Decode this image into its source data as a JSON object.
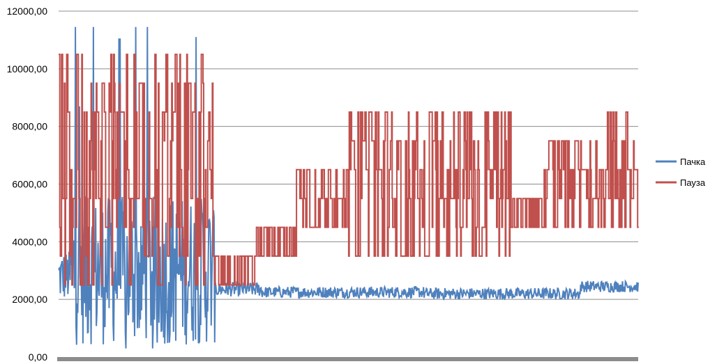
{
  "chart_data": {
    "type": "line",
    "ylim": [
      0,
      12000
    ],
    "y_ticks": [
      "0,00",
      "2000,00",
      "4000,00",
      "6000,00",
      "8000,00",
      "10000,00",
      "12000,00"
    ],
    "y_tick_values": [
      0,
      2000,
      4000,
      6000,
      8000,
      10000,
      12000
    ],
    "grid": true,
    "legend_position": "right",
    "n_points": 1000,
    "series": [
      {
        "name": "Пачка",
        "color": "#4f81bd",
        "segments": [
          {
            "from": 0,
            "to": 0.02,
            "base": 2800,
            "noise": 900,
            "spikes": [
              1200,
              3800
            ]
          },
          {
            "from": 0.02,
            "to": 0.27,
            "base": 3000,
            "noise": 2600,
            "spikes": [
              11300,
              11450,
              11450,
              11100,
              11050,
              8700,
              300,
              100,
              500,
              1300
            ]
          },
          {
            "from": 0.27,
            "to": 0.35,
            "base": 2350,
            "noise": 250
          },
          {
            "from": 0.35,
            "to": 0.63,
            "base": 2250,
            "noise": 200
          },
          {
            "from": 0.63,
            "to": 0.9,
            "base": 2200,
            "noise": 200
          },
          {
            "from": 0.9,
            "to": 1.0,
            "base": 2450,
            "noise": 200
          }
        ]
      },
      {
        "name": "Пауза",
        "color": "#c0504d",
        "segments": [
          {
            "from": 0,
            "to": 0.27,
            "levels": [
              2500,
              3500,
              4500,
              5500,
              6500,
              7500,
              8500,
              9500,
              10500
            ]
          },
          {
            "from": 0.27,
            "to": 0.34,
            "levels": [
              2500,
              3500
            ]
          },
          {
            "from": 0.34,
            "to": 0.41,
            "levels": [
              3500,
              4500
            ]
          },
          {
            "from": 0.41,
            "to": 0.5,
            "levels": [
              4500,
              5500,
              6500
            ]
          },
          {
            "from": 0.5,
            "to": 0.78,
            "levels": [
              3500,
              4500,
              5500,
              6500,
              7500,
              8500
            ]
          },
          {
            "from": 0.78,
            "to": 0.83,
            "levels": [
              4500,
              5500
            ]
          },
          {
            "from": 0.83,
            "to": 0.94,
            "levels": [
              4500,
              5500,
              6500,
              7500
            ]
          },
          {
            "from": 0.94,
            "to": 1.0,
            "levels": [
              4500,
              5500,
              6500,
              7500,
              8500
            ]
          }
        ]
      }
    ]
  }
}
